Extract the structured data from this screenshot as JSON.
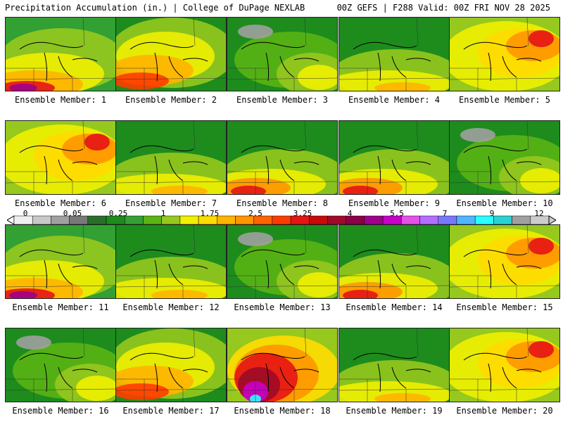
{
  "header": {
    "left_title": "Precipitation Accumulation (in.) | College of DuPage NEXLAB",
    "right_title": "00Z GEFS | F288 Valid: 00Z FRI NOV 28 2025"
  },
  "colorbar": {
    "tick_labels": [
      "0",
      "0.05",
      "0.25",
      "1",
      "1.75",
      "2.5",
      "3.25",
      "4",
      "5.5",
      "7",
      "9",
      "12"
    ],
    "colors": [
      "#f0f0f0",
      "#c8c8c8",
      "#a0a0a0",
      "#787878",
      "#2a6e2a",
      "#1d8c1d",
      "#32a032",
      "#5ab414",
      "#96c81e",
      "#f0f000",
      "#ffdc00",
      "#ffb400",
      "#ff9600",
      "#ff6400",
      "#ff3c00",
      "#e61414",
      "#c80a0a",
      "#a00a28",
      "#8c0046",
      "#a0008c",
      "#c800c8",
      "#e650e6",
      "#b46eff",
      "#7878ff",
      "#50b4ff",
      "#28ffff",
      "#28d2d2",
      "#a0a0a0",
      "#cccccc"
    ]
  },
  "panels": [
    {
      "label": "Ensemble Member: 1",
      "style": "sw-heavy"
    },
    {
      "label": "Ensemble Member: 2",
      "style": "sw-band"
    },
    {
      "label": "Ensemble Member: 3",
      "style": "green-north"
    },
    {
      "label": "Ensemble Member: 4",
      "style": "south-yellow"
    },
    {
      "label": "Ensemble Member: 5",
      "style": "orange-wide"
    },
    {
      "label": "Ensemble Member: 6",
      "style": "orange-wide"
    },
    {
      "label": "Ensemble Member: 7",
      "style": "south-yellow"
    },
    {
      "label": "Ensemble Member: 8",
      "style": "south-red"
    },
    {
      "label": "Ensemble Member: 9",
      "style": "south-red"
    },
    {
      "label": "Ensemble Member: 10",
      "style": "green-north"
    },
    {
      "label": "Ensemble Member: 11",
      "style": "sw-heavy"
    },
    {
      "label": "Ensemble Member: 12",
      "style": "south-yellow"
    },
    {
      "label": "Ensemble Member: 13",
      "style": "green-north"
    },
    {
      "label": "Ensemble Member: 14",
      "style": "south-red"
    },
    {
      "label": "Ensemble Member: 15",
      "style": "orange-wide"
    },
    {
      "label": "Ensemble Member: 16",
      "style": "green-north"
    },
    {
      "label": "Ensemble Member: 17",
      "style": "sw-band"
    },
    {
      "label": "Ensemble Member: 18",
      "style": "core-heavy"
    },
    {
      "label": "Ensemble Member: 19",
      "style": "south-yellow"
    },
    {
      "label": "Ensemble Member: 20",
      "style": "orange-wide"
    }
  ]
}
